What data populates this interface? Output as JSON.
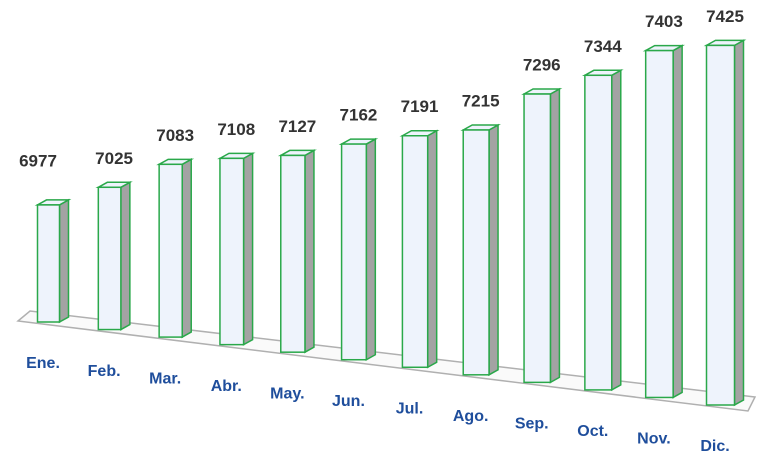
{
  "chart_data": {
    "type": "bar3d",
    "categories": [
      "Ene.",
      "Feb.",
      "Mar.",
      "Abr.",
      "May.",
      "Jun.",
      "Jul.",
      "Ago.",
      "Sep.",
      "Oct.",
      "Nov.",
      "Dic."
    ],
    "values": [
      6977,
      7025,
      7083,
      7108,
      7127,
      7162,
      7191,
      7215,
      7296,
      7344,
      7403,
      7425
    ],
    "color": "#eef3fc",
    "edge_color": "#2aa84a",
    "side_color": "#a3a3a3",
    "label_color": "#1f4e9c",
    "ylim": [
      6750,
      7450
    ]
  }
}
